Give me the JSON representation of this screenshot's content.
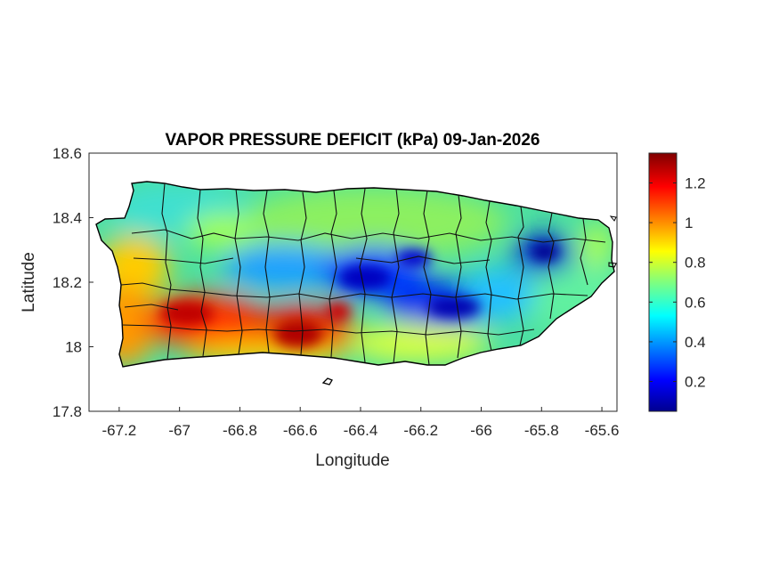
{
  "figure": {
    "title": "VAPOR PRESSURE DEFICIT (kPa) 09-Jan-2026",
    "xlabel": "Longitude",
    "ylabel": "Latitude"
  },
  "chart_data": {
    "type": "heatmap",
    "title": "VAPOR PRESSURE DEFICIT (kPa) 09-Jan-2026",
    "xlabel": "Longitude",
    "ylabel": "Latitude",
    "xlim": [
      -67.3,
      -65.55
    ],
    "ylim": [
      17.8,
      18.6
    ],
    "xticks": [
      -67.2,
      -67,
      -66.8,
      -66.6,
      -66.4,
      -66.2,
      -66,
      -65.8,
      -65.6
    ],
    "xtick_labels": [
      "-67.2",
      "-67",
      "-66.8",
      "-66.6",
      "-66.4",
      "-66.2",
      "-66",
      "-65.8",
      "-65.6"
    ],
    "yticks": [
      17.8,
      18,
      18.2,
      18.4,
      18.6
    ],
    "ytick_labels": [
      "17.8",
      "18",
      "18.2",
      "18.4",
      "18.6"
    ],
    "grid": false,
    "colormap": "jet",
    "colorbar": {
      "range": [
        0.05,
        1.35
      ],
      "ticks": [
        0.2,
        0.4,
        0.6,
        0.8,
        1,
        1.2
      ],
      "tick_labels": [
        "0.2",
        "0.4",
        "0.6",
        "0.8",
        "1",
        "1.2"
      ],
      "placement": "right"
    },
    "notable_regions": [
      {
        "lon": -66.6,
        "lat": 18.04,
        "value": 1.3
      },
      {
        "lon": -67.0,
        "lat": 18.1,
        "value": 1.25
      },
      {
        "lon": -66.5,
        "lat": 18.1,
        "value": 1.2
      },
      {
        "lon": -67.15,
        "lat": 18.2,
        "value": 1.0
      },
      {
        "lon": -66.4,
        "lat": 18.22,
        "value": 0.15
      },
      {
        "lon": -66.1,
        "lat": 18.12,
        "value": 0.15
      },
      {
        "lon": -65.8,
        "lat": 18.3,
        "value": 0.1
      },
      {
        "lon": -66.75,
        "lat": 18.23,
        "value": 0.4
      },
      {
        "lon": -66.9,
        "lat": 18.45,
        "value": 0.6
      },
      {
        "lon": -66.2,
        "lat": 18.42,
        "value": 0.75
      },
      {
        "lon": -65.7,
        "lat": 18.2,
        "value": 0.7
      }
    ],
    "colors": {
      "low": "#00008f",
      "mid_low": "#00ffff",
      "mid": "#ffff00",
      "high": "#ff0000",
      "max": "#800000"
    }
  }
}
